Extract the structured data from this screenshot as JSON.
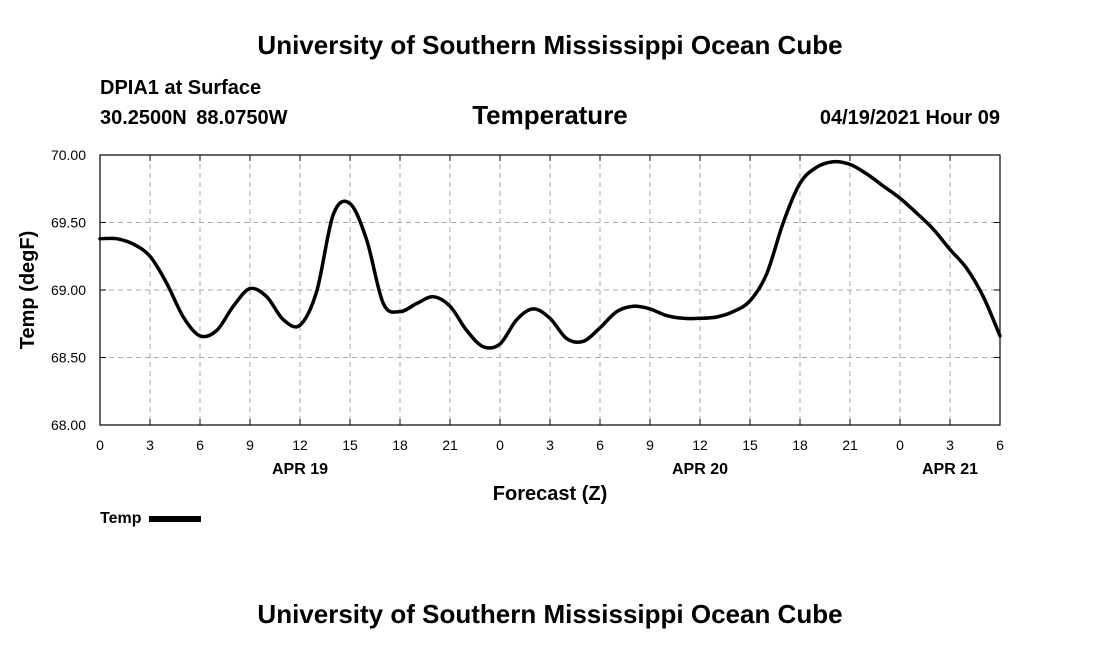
{
  "header": {
    "title": "University of Southern Mississippi Ocean Cube",
    "station": "DPIA1 at Surface",
    "coordinates": "30.2500N  88.0750W",
    "variable": "Temperature",
    "datetime": "04/19/2021 Hour 09"
  },
  "footer": {
    "title": "University of Southern Mississippi Ocean Cube"
  },
  "legend": {
    "label": "Temp",
    "color": "#000000"
  },
  "chart_data": {
    "type": "line",
    "title": "Temperature",
    "xlabel": "Forecast (Z)",
    "ylabel": "Temp (degF)",
    "xlim": [
      0,
      54
    ],
    "ylim": [
      68.0,
      70.0
    ],
    "x_ticks": [
      0,
      3,
      6,
      9,
      12,
      15,
      18,
      21,
      24,
      27,
      30,
      33,
      36,
      39,
      42,
      45,
      48,
      51,
      54
    ],
    "x_tick_labels": [
      "0",
      "3",
      "6",
      "9",
      "12",
      "15",
      "18",
      "21",
      "0",
      "3",
      "6",
      "9",
      "12",
      "15",
      "18",
      "21",
      "0",
      "3",
      "6"
    ],
    "y_ticks": [
      68.0,
      68.5,
      69.0,
      69.5,
      70.0
    ],
    "y_tick_labels": [
      "68.00",
      "68.50",
      "69.00",
      "69.50",
      "70.00"
    ],
    "date_labels": [
      {
        "x": 12,
        "label": "APR 19"
      },
      {
        "x": 36,
        "label": "APR 20"
      },
      {
        "x": 51,
        "label": "APR 21"
      }
    ],
    "grid": true,
    "series": [
      {
        "name": "Temp",
        "x": [
          0,
          1,
          2,
          3,
          4,
          5,
          6,
          7,
          8,
          9,
          10,
          11,
          12,
          13,
          14,
          15,
          16,
          17,
          18,
          19,
          20,
          21,
          22,
          23,
          24,
          25,
          26,
          27,
          28,
          29,
          30,
          31,
          32,
          33,
          34,
          35,
          36,
          37,
          38,
          39,
          40,
          41,
          42,
          43,
          44,
          45,
          46,
          47,
          48,
          49,
          50,
          51,
          52,
          53,
          54
        ],
        "values": [
          69.38,
          69.38,
          69.34,
          69.25,
          69.05,
          68.8,
          68.66,
          68.7,
          68.88,
          69.01,
          68.95,
          68.78,
          68.74,
          68.99,
          69.56,
          69.64,
          69.37,
          68.9,
          68.84,
          68.9,
          68.95,
          68.88,
          68.7,
          68.58,
          68.6,
          68.78,
          68.86,
          68.79,
          68.64,
          68.62,
          68.72,
          68.84,
          68.88,
          68.86,
          68.81,
          68.79,
          68.79,
          68.8,
          68.84,
          68.92,
          69.12,
          69.5,
          69.79,
          69.91,
          69.95,
          69.93,
          69.86,
          69.77,
          69.68,
          69.57,
          69.45,
          69.3,
          69.16,
          68.95,
          68.66
        ]
      }
    ]
  }
}
